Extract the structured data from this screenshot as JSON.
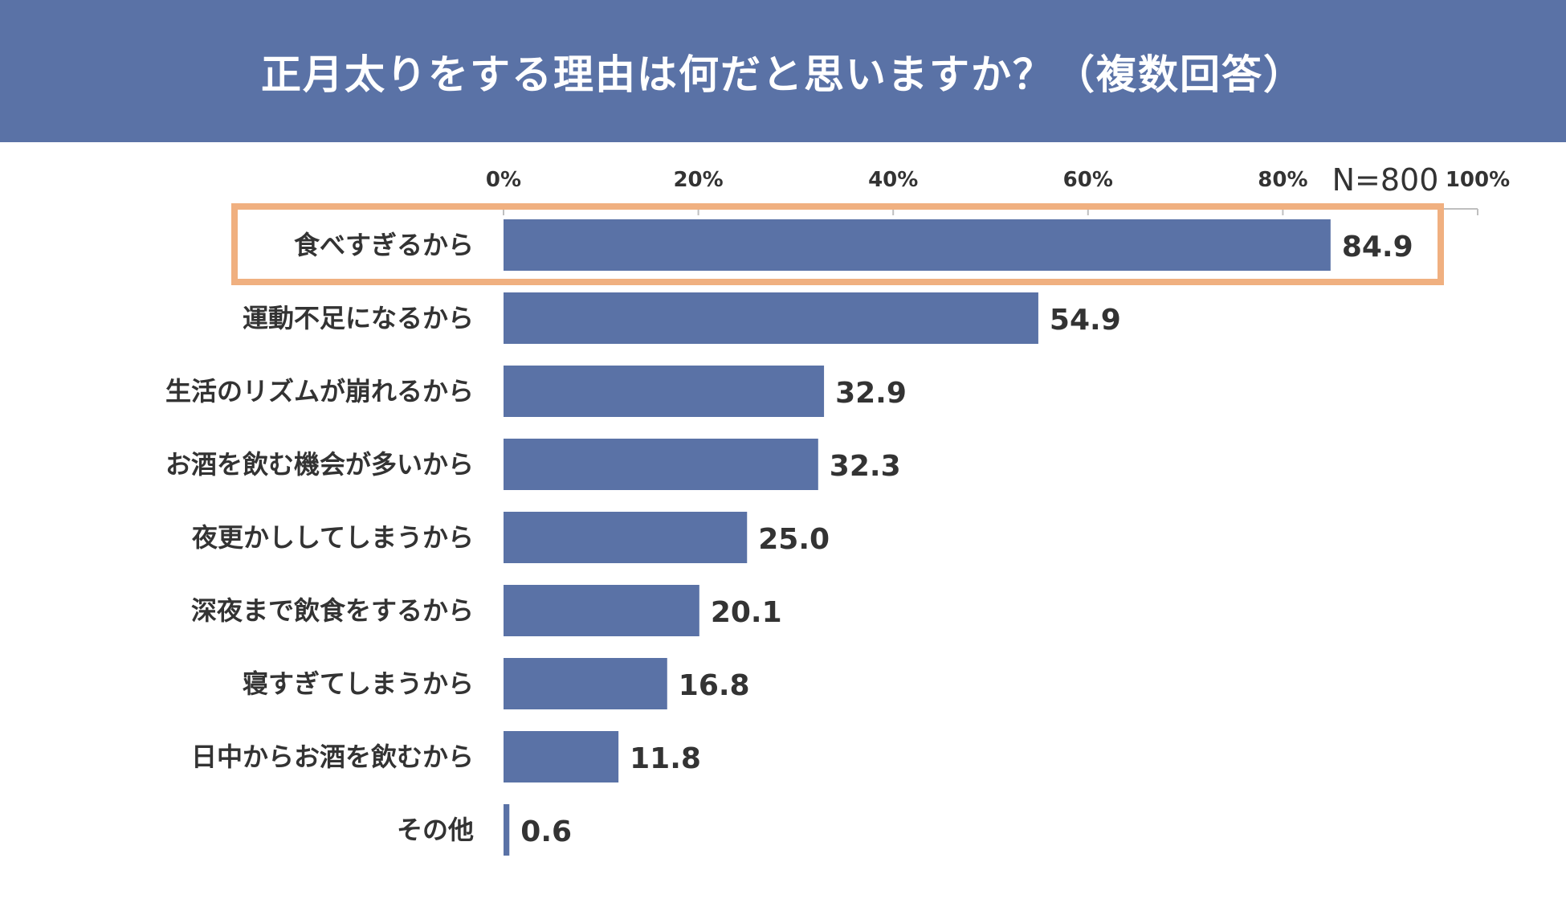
{
  "title": "正月太りをする理由は何だと思いますか？（複数回答）",
  "sample_size": "N=800",
  "colors": {
    "header": "#5a72a6",
    "bar": "#5a72a6",
    "highlight": "#f0b080"
  },
  "chart_data": {
    "type": "bar",
    "orientation": "horizontal",
    "title": "正月太りをする理由は何だと思いますか？（複数回答）",
    "xlim": [
      0,
      100
    ],
    "x_ticks": [
      "0%",
      "20%",
      "40%",
      "60%",
      "80%",
      "100%"
    ],
    "grid": false,
    "categories": [
      "食べすぎるから",
      "運動不足になるから",
      "生活のリズムが崩れるから",
      "お酒を飲む機会が多いから",
      "夜更かししてしまうから",
      "深夜まで飲食をするから",
      "寝すぎてしまうから",
      "日中からお酒を飲むから",
      "その他"
    ],
    "values": [
      84.9,
      54.9,
      32.9,
      32.3,
      25.0,
      20.1,
      16.8,
      11.8,
      0.6
    ],
    "value_labels": [
      "84.9",
      "54.9",
      "32.9",
      "32.3",
      "25.0",
      "20.1",
      "16.8",
      "11.8",
      "0.6"
    ],
    "highlighted_category": "食べすぎるから"
  }
}
